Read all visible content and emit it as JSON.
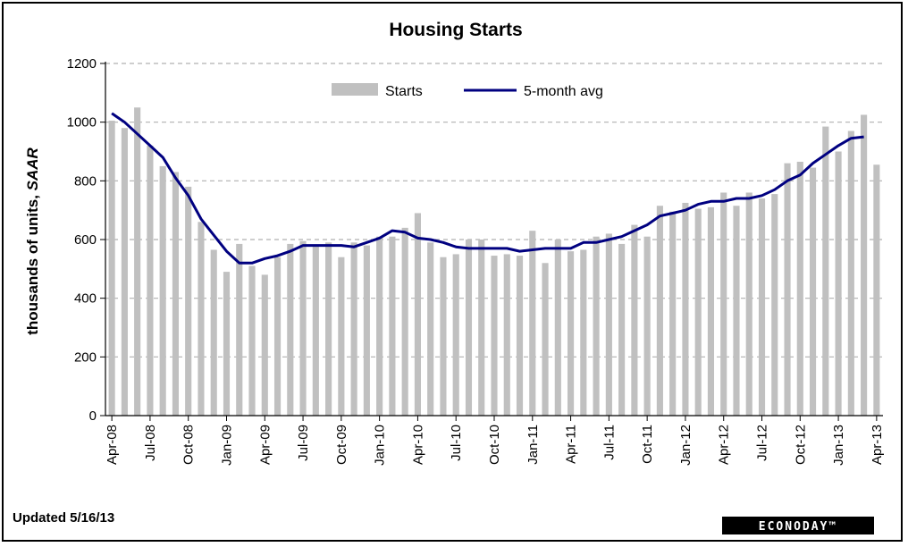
{
  "chart_data": {
    "type": "bar",
    "title": "Housing Starts",
    "ylabel_main": "thousands of units, ",
    "ylabel_italic": "SAAR",
    "ylim": [
      0,
      1200
    ],
    "yticks": [
      0,
      200,
      400,
      600,
      800,
      1000,
      1200
    ],
    "grid": "horizontal dashed",
    "legend_position": "top-center",
    "categories": [
      "Apr-08",
      "May-08",
      "Jun-08",
      "Jul-08",
      "Aug-08",
      "Sep-08",
      "Oct-08",
      "Nov-08",
      "Dec-08",
      "Jan-09",
      "Feb-09",
      "Mar-09",
      "Apr-09",
      "May-09",
      "Jun-09",
      "Jul-09",
      "Aug-09",
      "Sep-09",
      "Oct-09",
      "Nov-09",
      "Dec-09",
      "Jan-10",
      "Feb-10",
      "Mar-10",
      "Apr-10",
      "May-10",
      "Jun-10",
      "Jul-10",
      "Aug-10",
      "Sep-10",
      "Oct-10",
      "Nov-10",
      "Dec-10",
      "Jan-11",
      "Feb-11",
      "Mar-11",
      "Apr-11",
      "May-11",
      "Jun-11",
      "Jul-11",
      "Aug-11",
      "Sep-11",
      "Oct-11",
      "Nov-11",
      "Dec-11",
      "Jan-12",
      "Feb-12",
      "Mar-12",
      "Apr-12",
      "May-12",
      "Jun-12",
      "Jul-12",
      "Aug-12",
      "Sep-12",
      "Oct-12",
      "Nov-12",
      "Dec-12",
      "Jan-13",
      "Feb-13",
      "Mar-13",
      "Apr-13"
    ],
    "x_tick_labels": [
      "Apr-08",
      "Jul-08",
      "Oct-08",
      "Jan-09",
      "Apr-09",
      "Jul-09",
      "Oct-09",
      "Jan-10",
      "Apr-10",
      "Jul-10",
      "Oct-10",
      "Jan-11",
      "Apr-11",
      "Jul-11",
      "Oct-11",
      "Jan-12",
      "Apr-12",
      "Jul-12",
      "Oct-12",
      "Jan-13",
      "Apr-13"
    ],
    "series": [
      {
        "name": "Starts",
        "kind": "bar",
        "color": "#c0c0c0",
        "values": [
          1005,
          980,
          1050,
          920,
          850,
          830,
          780,
          660,
          565,
          490,
          585,
          510,
          480,
          540,
          585,
          595,
          580,
          590,
          540,
          590,
          580,
          610,
          610,
          640,
          690,
          590,
          540,
          550,
          600,
          600,
          545,
          550,
          545,
          630,
          520,
          600,
          560,
          565,
          610,
          620,
          585,
          650,
          610,
          715,
          695,
          725,
          705,
          710,
          760,
          715,
          760,
          740,
          755,
          860,
          865,
          845,
          985,
          900,
          970,
          1025,
          855
        ]
      },
      {
        "name": "5-month avg",
        "kind": "line",
        "color": "#000080",
        "values": [
          1030,
          1000,
          960,
          920,
          880,
          810,
          750,
          670,
          615,
          560,
          520,
          520,
          535,
          545,
          560,
          580,
          580,
          580,
          580,
          575,
          590,
          605,
          630,
          625,
          605,
          600,
          590,
          575,
          570,
          570,
          570,
          570,
          560,
          565,
          570,
          570,
          570,
          590,
          590,
          600,
          610,
          630,
          650,
          680,
          690,
          700,
          720,
          730,
          730,
          740,
          740,
          750,
          770,
          800,
          820,
          860,
          890,
          920,
          945,
          950,
          null
        ]
      }
    ]
  },
  "footer": {
    "updated": "Updated 5/16/13",
    "logo": "ECONODAY™"
  }
}
